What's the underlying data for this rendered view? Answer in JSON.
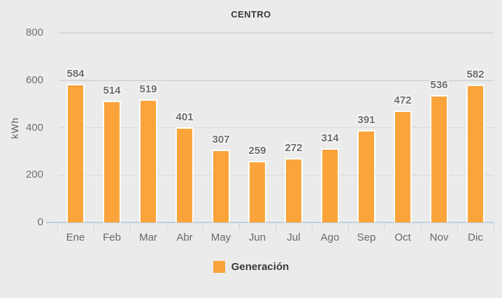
{
  "chart_data": {
    "type": "bar",
    "title": "CENTRO",
    "categories": [
      "Ene",
      "Feb",
      "Mar",
      "Abr",
      "May",
      "Jun",
      "Jul",
      "Ago",
      "Sep",
      "Oct",
      "Nov",
      "Dic"
    ],
    "series": [
      {
        "name": "Generación",
        "values": [
          584,
          514,
          519,
          401,
          307,
          259,
          272,
          314,
          391,
          472,
          536,
          582
        ]
      }
    ],
    "xlabel": "",
    "ylabel": "kWh",
    "yticks": [
      0,
      200,
      400,
      600,
      800
    ],
    "ylim": [
      0,
      800
    ],
    "grid": true,
    "legend_position": "bottom",
    "colors": {
      "bar": "#fba43b",
      "bar_outline": "#ffffff",
      "background": "#ebebeb",
      "gridline": "#d9d9d9",
      "axis_line": "#c2ceda",
      "title_text": "#3a3a3a",
      "axis_text": "#686868",
      "value_label_text": "#6c6c6c"
    }
  }
}
